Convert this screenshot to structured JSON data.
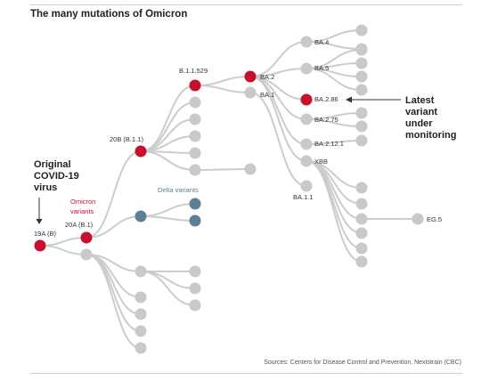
{
  "title": "The many mutations of Omicron",
  "source": "Sources: Centers for Disease Control and Prevention, Nextstrain (CBC)",
  "annotations": {
    "original_virus": [
      "Original",
      "COVID-19",
      "virus"
    ],
    "omicron_variants": [
      "Omicron",
      "variants"
    ],
    "delta_variants": "Delta variants",
    "latest_variant": [
      "Latest",
      "variant",
      "under",
      "monitoring"
    ]
  },
  "labels": {
    "n19A": "19A (B)",
    "n20A": "20A (B.1)",
    "n20B": "20B (B.1.1)",
    "b11529": "B.1.1.529",
    "ba2": "BA.2",
    "ba1": "BA.1",
    "ba4": "BA.4",
    "ba5": "BA.5",
    "ba286": "BA.2.86",
    "ba275": "BA.2.75",
    "ba2121": "BA.2.12.1",
    "xbb": "XBB",
    "ba11": "BA.1.1",
    "eg5": "EG.5"
  },
  "colors": {
    "highlight": "#c8102e",
    "delta": "#5b7f95",
    "node": "#c9c9c9",
    "edge": "#cccccc"
  }
}
